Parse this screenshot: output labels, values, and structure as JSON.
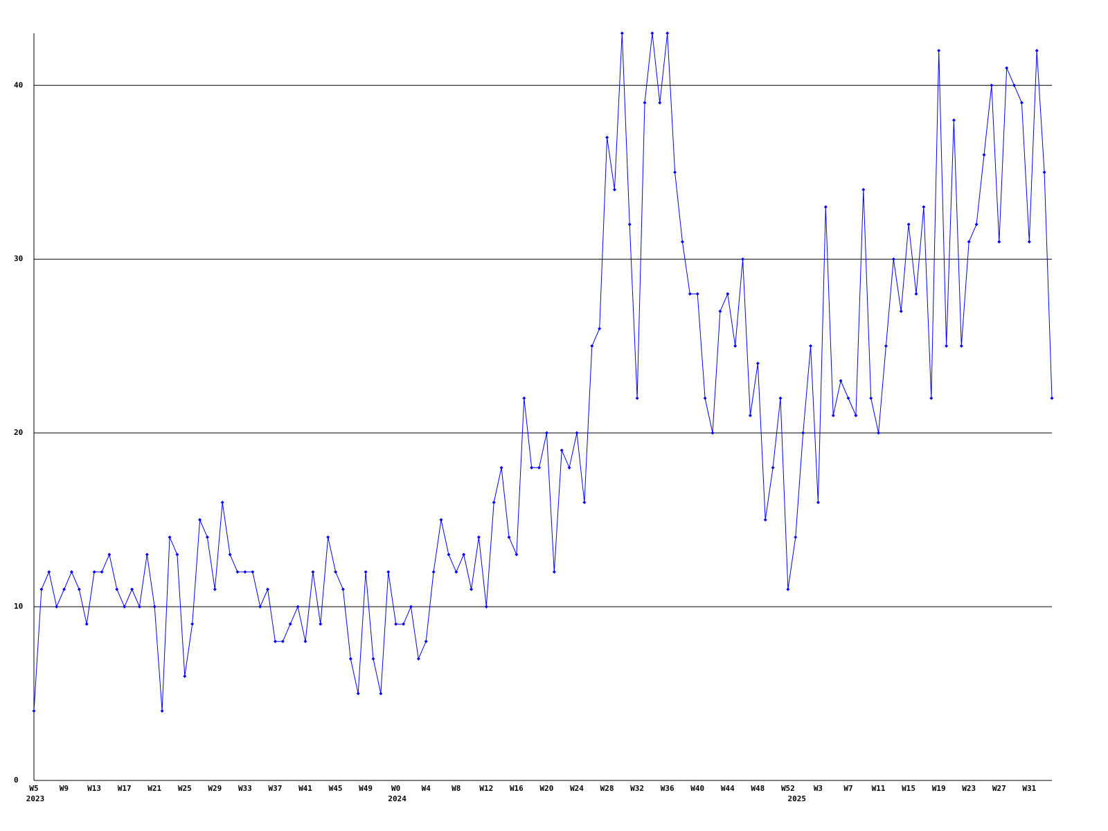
{
  "chart_data": {
    "type": "line",
    "categories": [
      "W5",
      null,
      null,
      null,
      "W9",
      null,
      null,
      null,
      "W13",
      null,
      null,
      null,
      "W17",
      null,
      null,
      null,
      "W21",
      null,
      null,
      null,
      "W25",
      null,
      null,
      null,
      "W29",
      null,
      null,
      null,
      "W33",
      null,
      null,
      null,
      "W37",
      null,
      null,
      null,
      "W41",
      null,
      null,
      null,
      "W45",
      null,
      null,
      null,
      "W49",
      null,
      null,
      null,
      "W0",
      null,
      null,
      null,
      "W4",
      null,
      null,
      null,
      "W8",
      null,
      null,
      null,
      "W12",
      null,
      null,
      null,
      "W16",
      null,
      null,
      null,
      "W20",
      null,
      null,
      null,
      "W24",
      null,
      null,
      null,
      "W28",
      null,
      null,
      null,
      "W32",
      null,
      null,
      null,
      "W36",
      null,
      null,
      null,
      "W40",
      null,
      null,
      null,
      "W44",
      null,
      null,
      null,
      "W48",
      null,
      null,
      null,
      "W52",
      null,
      null,
      null,
      "W3",
      null,
      null,
      null,
      "W7",
      null,
      null,
      null,
      "W11",
      null,
      null,
      null,
      "W15",
      null,
      null,
      null,
      "W19",
      null,
      null,
      null,
      "W23",
      null,
      null,
      null,
      "W27",
      null,
      null,
      null,
      "W31",
      null,
      null,
      null
    ],
    "years": [
      "2023",
      null,
      null,
      null,
      null,
      null,
      null,
      null,
      null,
      null,
      null,
      null,
      null,
      null,
      null,
      null,
      null,
      null,
      null,
      null,
      null,
      null,
      null,
      null,
      null,
      null,
      null,
      null,
      null,
      null,
      null,
      null,
      null,
      null,
      null,
      null,
      null,
      null,
      null,
      null,
      null,
      null,
      null,
      null,
      null,
      null,
      null,
      null,
      "2024",
      null,
      null,
      null,
      null,
      null,
      null,
      null,
      null,
      null,
      null,
      null,
      null,
      null,
      null,
      null,
      null,
      null,
      null,
      null,
      null,
      null,
      null,
      null,
      null,
      null,
      null,
      null,
      null,
      null,
      null,
      null,
      null,
      null,
      null,
      null,
      null,
      null,
      null,
      null,
      null,
      null,
      null,
      null,
      null,
      null,
      null,
      null,
      null,
      null,
      null,
      null,
      null,
      "2025",
      null,
      null,
      null,
      null,
      null,
      null,
      null,
      null,
      null,
      null,
      null,
      null,
      null,
      null,
      null,
      null,
      null,
      null,
      null,
      null,
      null,
      null,
      null,
      null,
      null,
      null,
      null,
      null,
      null,
      null,
      null,
      null,
      null,
      null
    ],
    "series": [
      {
        "color": "#0000ff",
        "values": [
          4,
          11,
          12,
          10,
          11,
          12,
          11,
          9,
          12,
          12,
          13,
          11,
          10,
          11,
          10,
          13,
          10,
          4,
          14,
          13,
          6,
          9,
          15,
          14,
          11,
          16,
          13,
          12,
          12,
          12,
          10,
          11,
          8,
          8,
          9,
          10,
          8,
          12,
          9,
          14,
          12,
          11,
          7,
          5,
          12,
          7,
          5,
          12,
          9,
          9,
          10,
          7,
          8,
          12,
          15,
          13,
          12,
          13,
          11,
          14,
          10,
          16,
          18,
          14,
          13,
          22,
          18,
          18,
          20,
          12,
          19,
          18,
          20,
          16,
          25,
          26,
          37,
          34,
          43,
          32,
          22,
          39,
          43,
          39,
          43,
          35,
          31,
          28,
          28,
          22,
          20,
          27,
          28,
          25,
          30,
          21,
          24,
          15,
          18,
          22,
          11,
          14,
          20,
          25,
          16,
          33,
          21,
          23,
          22,
          21,
          34,
          22,
          20,
          25,
          30,
          27,
          32,
          28,
          33,
          22,
          42,
          25,
          38,
          25,
          31,
          32,
          36,
          40,
          31,
          41,
          40,
          39,
          31,
          42,
          35,
          22
        ]
      }
    ],
    "ylim": [
      0,
      43
    ],
    "yticks": [
      0,
      10,
      20,
      30,
      40
    ],
    "grid": true
  }
}
